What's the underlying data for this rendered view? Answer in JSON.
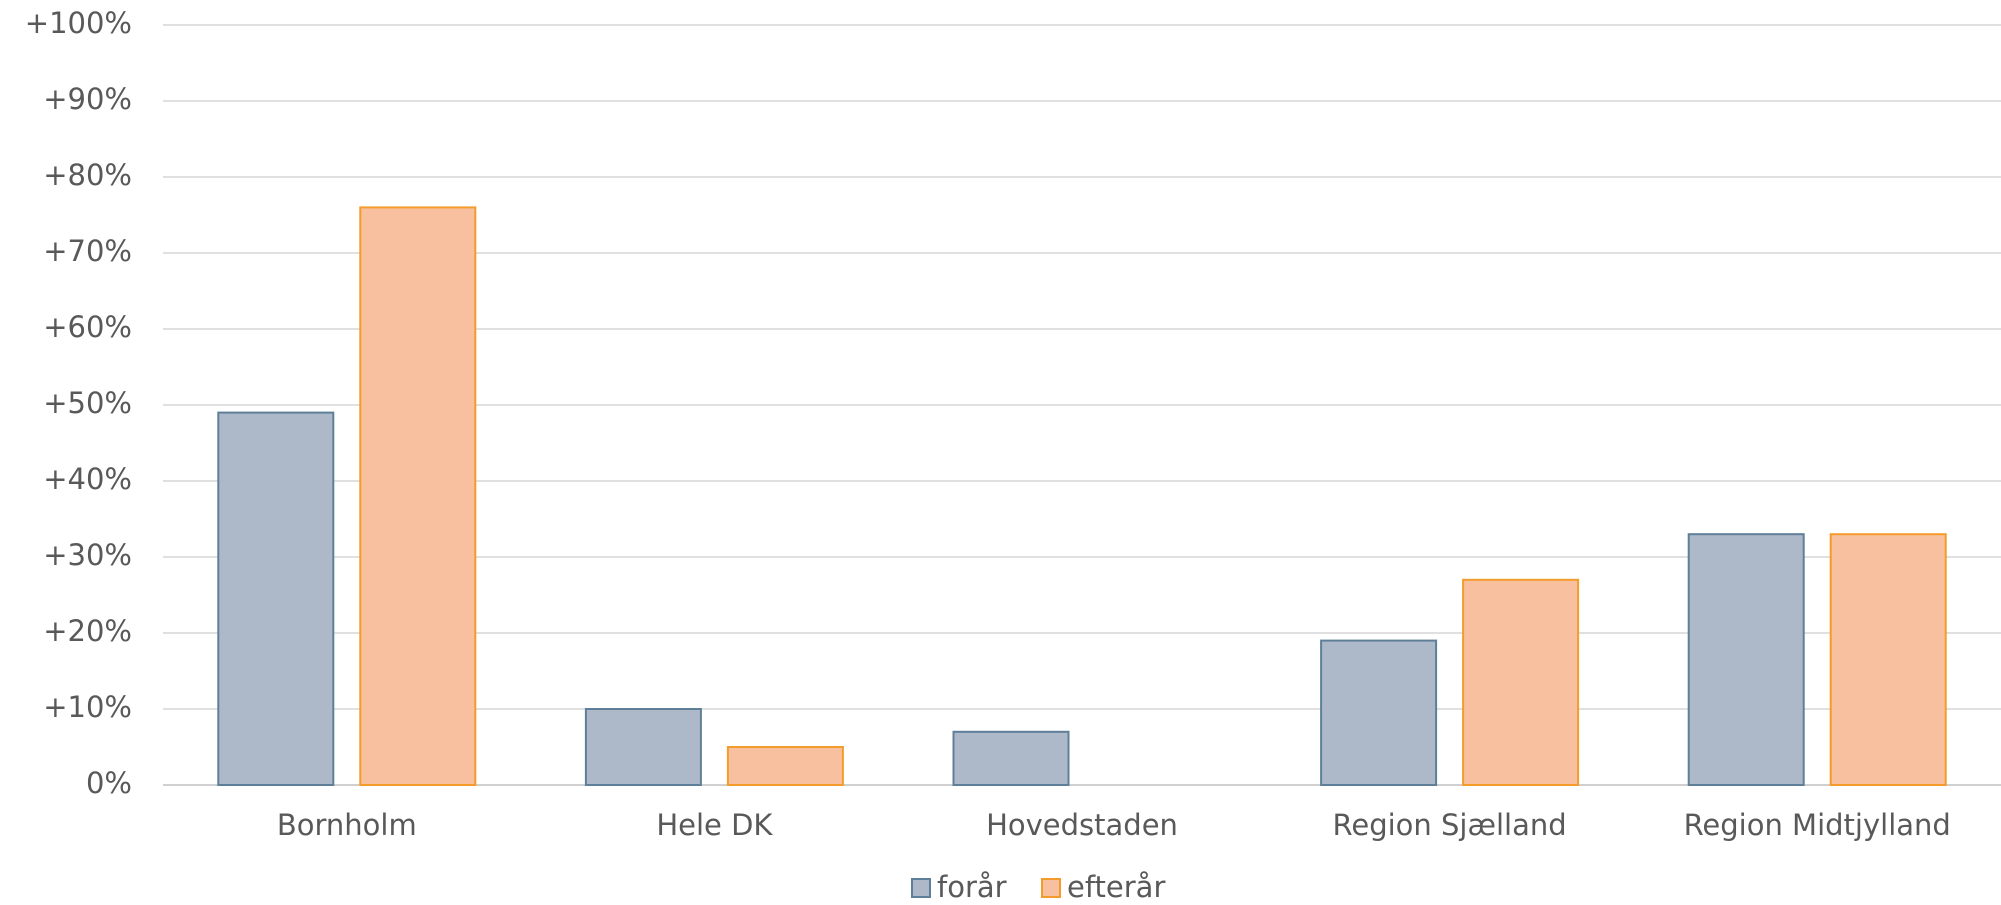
{
  "chart_data": {
    "type": "bar",
    "categories": [
      "Bornholm",
      "Hele DK",
      "Hovedstaden",
      "Region Sjælland",
      "Region Midtjylland"
    ],
    "series": [
      {
        "name": "forår",
        "color": "#adb9c9",
        "edge": "#5f7f99",
        "values": [
          49,
          10,
          7,
          19,
          33
        ]
      },
      {
        "name": "efterår",
        "color": "#f9c09f",
        "edge": "#f39c2c",
        "values": [
          76,
          5,
          0,
          27,
          33
        ]
      }
    ],
    "ylim": [
      0,
      100
    ],
    "yticks": [
      0,
      {
        "value": 10,
        "label": "+10%"
      },
      {
        "value": 20,
        "label": "+20%"
      },
      {
        "value": 30,
        "label": "+30%"
      },
      {
        "value": 40,
        "label": "+40%"
      },
      {
        "value": 50,
        "label": "+50%"
      },
      {
        "value": 60,
        "label": "+60%"
      },
      {
        "value": 70,
        "label": "+70%"
      },
      {
        "value": 80,
        "label": "+80%"
      },
      {
        "value": 90,
        "label": "+90%"
      },
      {
        "value": 100,
        "label": "+100%"
      }
    ],
    "ytick_zero_label": "0%",
    "grid": true,
    "legend": "bottom"
  }
}
